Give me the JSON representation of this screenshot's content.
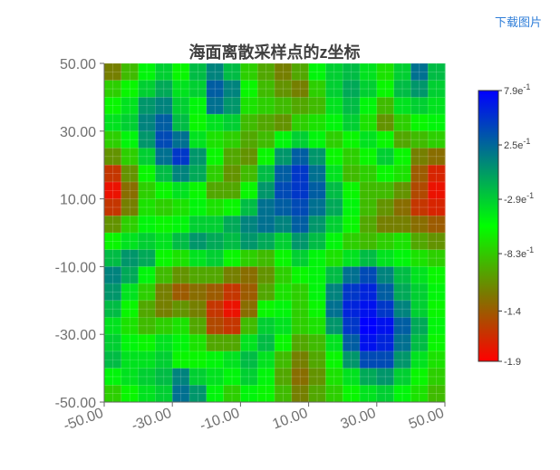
{
  "ui": {
    "download_label": "下载图片"
  },
  "chart_data": {
    "type": "heatmap",
    "title": "海面离散采样点的z坐标",
    "xlabel": "",
    "ylabel": "",
    "xlim": [
      -50,
      50
    ],
    "ylim": [
      -50,
      50
    ],
    "x_ticks": [
      "-50.00",
      "-30.00",
      "-10.00",
      "10.00",
      "30.00",
      "50.00"
    ],
    "y_ticks": [
      "50.00",
      "30.00",
      "10.00",
      "-10.00",
      "-30.00",
      "-50.00"
    ],
    "grid": true,
    "grid_size": 20,
    "z_range": [
      -1.9,
      0.79
    ],
    "colorscale": [
      "#ff0000",
      "#7a7a00",
      "#00ff00",
      "#008080",
      "#0000ff"
    ],
    "colorbar": {
      "placement": "right",
      "ticks": [
        {
          "value": 0.79,
          "base": "7.9e",
          "exp": "-1"
        },
        {
          "value": 0.25,
          "base": "2.5e",
          "exp": "-1"
        },
        {
          "value": -0.29,
          "base": "-2.9e",
          "exp": "-1"
        },
        {
          "value": -0.83,
          "base": "-8.3e",
          "exp": "-1"
        },
        {
          "value": -1.4,
          "base": "-1.4",
          "exp": ""
        },
        {
          "value": -1.9,
          "base": "-1.9",
          "exp": ""
        }
      ]
    },
    "z": [
      [
        -1.2,
        -0.9,
        -0.5,
        -0.3,
        -0.6,
        -0.2,
        0.1,
        -0.2,
        -0.8,
        -1.0,
        -1.2,
        -1.0,
        -0.5,
        -0.3,
        -0.2,
        -0.4,
        -0.7,
        -0.3,
        0.2,
        -0.2
      ],
      [
        -0.8,
        -0.6,
        -0.3,
        -0.1,
        -0.4,
        -0.3,
        0.3,
        0.1,
        -0.6,
        -0.9,
        -1.1,
        -1.2,
        -0.8,
        -0.3,
        -0.1,
        -0.3,
        -0.6,
        -0.2,
        0.0,
        -0.3
      ],
      [
        -0.6,
        -0.4,
        0.0,
        0.1,
        -0.3,
        -0.5,
        0.2,
        0.0,
        -0.7,
        -0.8,
        -0.9,
        -1.0,
        -0.9,
        -0.4,
        -0.2,
        -0.5,
        -0.9,
        -0.4,
        -0.3,
        -0.4
      ],
      [
        -0.4,
        -0.3,
        0.1,
        0.3,
        -0.2,
        -0.6,
        -0.4,
        -0.3,
        -0.9,
        -1.0,
        -1.1,
        -0.8,
        -0.7,
        -0.5,
        -0.3,
        -0.7,
        -1.1,
        -0.8,
        -0.6,
        -0.5
      ],
      [
        -0.8,
        -0.5,
        0.0,
        0.4,
        0.2,
        -0.4,
        -0.7,
        -0.8,
        -1.0,
        -0.9,
        -0.5,
        -0.3,
        -0.5,
        -0.8,
        -0.6,
        -0.4,
        -0.6,
        -1.0,
        -0.9,
        -0.8
      ],
      [
        -1.1,
        -0.8,
        -0.3,
        0.2,
        0.5,
        0.0,
        -0.6,
        -1.0,
        -1.1,
        -0.6,
        0.0,
        0.3,
        0.0,
        -0.6,
        -0.8,
        -0.6,
        -0.3,
        -0.6,
        -1.2,
        -1.3
      ],
      [
        -1.6,
        -1.1,
        -0.6,
        -0.2,
        0.1,
        -0.1,
        -0.8,
        -1.1,
        -0.9,
        -0.2,
        0.3,
        0.5,
        0.2,
        -0.4,
        -0.9,
        -0.8,
        -0.6,
        -0.7,
        -1.4,
        -1.7
      ],
      [
        -1.8,
        -1.3,
        -0.8,
        -0.6,
        -0.4,
        -0.6,
        -1.0,
        -1.0,
        -0.6,
        0.0,
        0.4,
        0.5,
        0.3,
        -0.2,
        -0.6,
        -0.9,
        -0.9,
        -1.1,
        -1.5,
        -1.8
      ],
      [
        -1.6,
        -1.2,
        -0.7,
        -0.8,
        -0.7,
        -0.5,
        -0.7,
        -0.6,
        -0.2,
        0.2,
        0.3,
        0.4,
        0.2,
        -0.1,
        -0.5,
        -0.9,
        -1.1,
        -1.3,
        -1.6,
        -1.7
      ],
      [
        -1.1,
        -0.8,
        -0.5,
        -0.6,
        -0.5,
        -0.3,
        -0.3,
        -0.1,
        0.1,
        0.2,
        0.1,
        0.3,
        0.0,
        -0.3,
        -0.6,
        -1.0,
        -1.2,
        -1.2,
        -1.3,
        -1.4
      ],
      [
        -0.6,
        -0.4,
        -0.3,
        -0.4,
        -0.2,
        0.0,
        -0.1,
        -0.2,
        0.0,
        -0.1,
        -0.3,
        0.0,
        -0.2,
        -0.5,
        -0.8,
        -0.9,
        -0.8,
        -0.7,
        -1.0,
        -1.1
      ],
      [
        -0.2,
        0.0,
        -0.1,
        -0.6,
        -0.7,
        -0.4,
        -0.3,
        -0.6,
        -0.8,
        -0.9,
        -0.6,
        -0.3,
        -0.5,
        -0.7,
        -0.4,
        -0.2,
        -0.4,
        -0.5,
        -0.7,
        -0.8
      ],
      [
        0.1,
        -0.1,
        -0.5,
        -0.9,
        -1.1,
        -1.0,
        -1.0,
        -1.2,
        -1.3,
        -1.1,
        -0.8,
        -0.6,
        -0.5,
        -0.2,
        0.2,
        0.4,
        0.1,
        -0.2,
        -0.4,
        -0.6
      ],
      [
        0.0,
        -0.4,
        -0.8,
        -1.2,
        -1.4,
        -1.3,
        -1.4,
        -1.6,
        -1.4,
        -1.0,
        -0.7,
        -0.8,
        -0.5,
        0.1,
        0.5,
        0.6,
        0.3,
        -0.1,
        -0.3,
        -0.5
      ],
      [
        -0.2,
        -0.6,
        -1.0,
        -1.2,
        -1.1,
        -1.2,
        -1.6,
        -1.8,
        -1.3,
        -0.6,
        -0.5,
        -0.8,
        -0.6,
        0.2,
        0.6,
        0.7,
        0.5,
        0.1,
        -0.3,
        -0.6
      ],
      [
        -0.4,
        -0.7,
        -0.9,
        -0.8,
        -0.7,
        -1.0,
        -1.5,
        -1.6,
        -0.9,
        -0.3,
        -0.4,
        -0.8,
        -0.7,
        0.0,
        0.5,
        0.8,
        0.7,
        0.3,
        -0.1,
        -0.5
      ],
      [
        -0.3,
        -0.5,
        -0.6,
        -0.4,
        -0.5,
        -0.7,
        -1.0,
        -1.0,
        -0.4,
        -0.2,
        -0.6,
        -1.0,
        -0.9,
        -0.4,
        0.3,
        0.7,
        0.6,
        0.2,
        -0.2,
        -0.6
      ],
      [
        -0.2,
        -0.4,
        -0.4,
        -0.3,
        -0.6,
        -0.6,
        -0.5,
        -0.4,
        -0.2,
        -0.4,
        -0.9,
        -1.2,
        -1.0,
        -0.6,
        0.0,
        0.4,
        0.4,
        0.0,
        -0.4,
        -0.7
      ],
      [
        -0.5,
        -0.4,
        -0.3,
        -0.2,
        0.1,
        -0.3,
        -0.4,
        -0.5,
        -0.3,
        -0.5,
        -1.0,
        -1.3,
        -1.1,
        -0.7,
        -0.4,
        -0.1,
        0.0,
        -0.3,
        -0.6,
        -0.8
      ],
      [
        -0.8,
        -0.6,
        -0.4,
        -0.3,
        0.2,
        0.0,
        -0.5,
        -0.8,
        -0.5,
        -0.6,
        -0.9,
        -1.2,
        -1.0,
        -0.8,
        -0.6,
        -0.4,
        -0.3,
        -0.5,
        -0.7,
        -0.9
      ]
    ]
  }
}
